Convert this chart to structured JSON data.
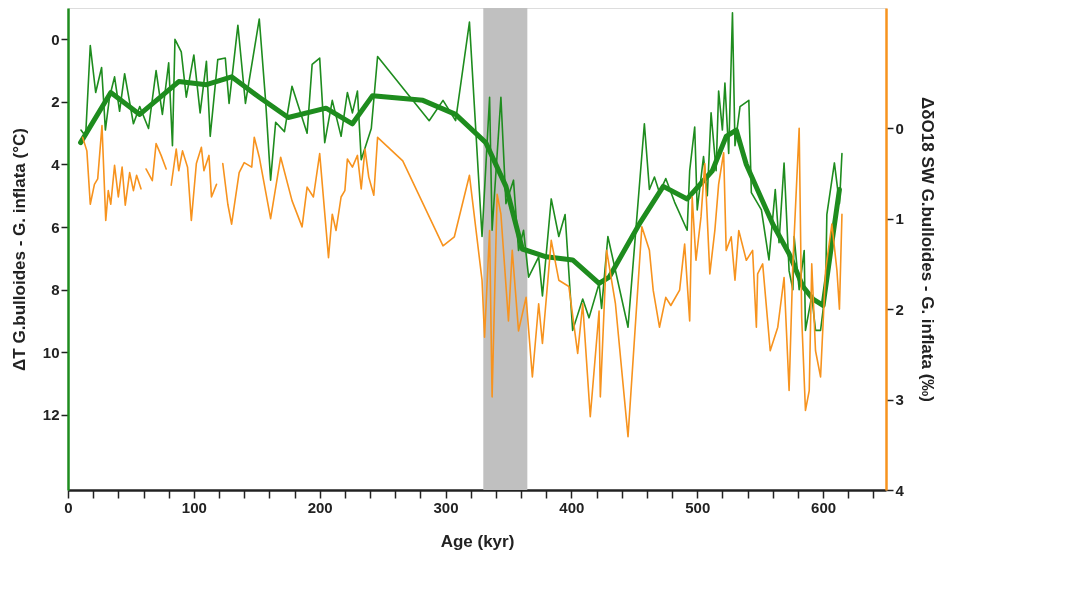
{
  "chart_data": {
    "type": "line",
    "xlabel": "Age (kyr)",
    "ylabel": "ΔT G.bulloides - G. inflata (°C)",
    "y2label": "ΔδO18 SW G.bulloides - G. inflata (‰)",
    "xlim": [
      0,
      650
    ],
    "xticks": [
      0,
      {
        "value": 20,
        "label": null
      },
      {
        "value": 40,
        "label": null
      },
      {
        "value": 60,
        "label": null
      },
      {
        "value": 80,
        "label": null
      },
      100,
      {
        "value": 120,
        "label": null
      },
      {
        "value": 140,
        "label": null
      },
      {
        "value": 160,
        "label": null
      },
      {
        "value": 180,
        "label": null
      },
      200,
      {
        "value": 220,
        "label": null
      },
      {
        "value": 240,
        "label": null
      },
      {
        "value": 260,
        "label": null
      },
      {
        "value": 280,
        "label": null
      },
      300,
      {
        "value": 320,
        "label": null
      },
      {
        "value": 340,
        "label": null
      },
      {
        "value": 360,
        "label": null
      },
      {
        "value": 380,
        "label": null
      },
      400,
      {
        "value": 420,
        "label": null
      },
      {
        "value": 440,
        "label": null
      },
      {
        "value": 460,
        "label": null
      },
      {
        "value": 480,
        "label": null
      },
      500,
      {
        "value": 520,
        "label": null
      },
      {
        "value": 540,
        "label": null
      },
      {
        "value": 560,
        "label": null
      },
      {
        "value": 580,
        "label": null
      },
      600,
      {
        "value": 620,
        "label": null
      },
      {
        "value": 640,
        "label": null
      }
    ],
    "ylim": [
      14.4,
      -1
    ],
    "yticks": [
      0,
      2,
      4,
      6,
      8,
      10,
      12
    ],
    "y2lim": [
      4,
      -1.33
    ],
    "y2ticks": [
      0,
      1,
      2,
      3,
      4
    ],
    "grid": false,
    "bands": [
      {
        "axis": "x",
        "from": 330,
        "to": 365,
        "color": "#c0c0c0"
      }
    ],
    "series": [
      {
        "color": "#1e8c1e",
        "x": [
          10.3,
          14,
          17.7,
          22,
          26.7,
          29.7,
          33,
          37,
          41,
          45,
          52,
          57,
          64,
          70,
          75,
          80,
          83,
          85,
          90,
          94,
          100,
          105,
          110,
          113,
          119,
          125,
          128,
          135,
          141,
          152,
          157,
          161,
          165,
          172,
          178,
          190,
          194,
          200,
          204,
          210,
          217,
          222,
          226,
          230,
          233,
          241,
          246,
          287,
          298,
          308,
          319,
          329,
          335,
          337,
          344,
          348,
          354,
          358,
          362,
          366,
          374,
          377,
          384,
          390,
          395,
          401,
          409,
          414,
          422,
          424,
          429,
          445,
          458,
          462,
          466,
          470,
          475,
          482,
          492,
          494,
          498,
          500,
          505,
          508,
          511,
          515,
          517,
          520,
          522,
          525,
          528,
          530,
          534,
          541,
          543,
          551,
          557,
          562,
          565,
          569,
          573,
          576,
          577,
          581,
          585,
          586,
          591,
          594,
          598,
          602,
          603,
          609,
          613,
          615
        ],
        "values": [
          2.9,
          3.1,
          0.2,
          1.7,
          0.9,
          2.9,
          1.85,
          1.2,
          2.3,
          1.1,
          2.7,
          2.15,
          2.85,
          1.0,
          2.4,
          0.75,
          3.4,
          0.0,
          0.4,
          1.85,
          0.5,
          2.35,
          0.7,
          3.1,
          0.65,
          0.6,
          2.05,
          -0.45,
          2.05,
          -0.65,
          1.95,
          4.5,
          2.65,
          2.95,
          1.5,
          3.0,
          0.8,
          0.6,
          3.3,
          1.95,
          3.1,
          1.7,
          2.35,
          1.65,
          3.85,
          2.85,
          0.55,
          2.6,
          1.95,
          2.6,
          -0.55,
          6.3,
          1.85,
          6.1,
          1.85,
          5.25,
          4.5,
          6.75,
          6.1,
          7.6,
          6.95,
          8.2,
          5.1,
          6.3,
          5.6,
          9.3,
          8.3,
          8.9,
          7.8,
          8.6,
          6.3,
          9.2,
          2.7,
          4.8,
          4.4,
          4.9,
          4.45,
          5.2,
          6.1,
          4.2,
          2.8,
          5.45,
          3.75,
          5.0,
          2.35,
          4.2,
          1.65,
          2.9,
          1.4,
          3.65,
          -0.85,
          3.4,
          2.15,
          1.95,
          4.9,
          5.45,
          7.05,
          4.8,
          6.5,
          3.95,
          7.4,
          8.0,
          6.3,
          8.0,
          6.75,
          9.3,
          8.2,
          9.3,
          9.3,
          8.0,
          5.6,
          3.95,
          5.25,
          3.65
        ]
      },
      {
        "color": "#1e8c1e",
        "x": [
          10,
          34,
          57,
          88,
          110,
          130,
          152,
          175,
          205,
          226,
          242,
          282,
          308,
          332,
          348,
          361,
          380,
          401,
          422,
          430,
          454,
          473,
          492,
          512,
          523,
          531,
          539,
          560,
          573,
          584,
          592,
          600,
          607,
          613
        ],
        "values": [
          3.3,
          1.7,
          2.4,
          1.35,
          1.45,
          1.2,
          1.85,
          2.5,
          2.2,
          2.7,
          1.8,
          1.95,
          2.4,
          3.3,
          4.7,
          6.7,
          6.95,
          7.05,
          7.8,
          7.6,
          5.9,
          4.7,
          5.1,
          4.2,
          3.1,
          2.9,
          4.0,
          5.9,
          6.85,
          7.9,
          8.3,
          8.5,
          6.5,
          4.8
        ]
      },
      {
        "color": "#f7931e",
        "axis": "y2",
        "x": [
          11.6,
          15,
          17.7,
          21,
          23.6,
          27,
          30,
          32,
          34,
          37,
          40,
          43,
          45.5,
          49,
          52,
          54.5,
          58,
          60,
          62,
          67,
          70,
          74,
          78,
          80,
          82,
          86,
          88,
          91,
          95,
          98,
          102,
          106,
          108,
          112,
          114,
          118,
          120,
          123,
          127,
          130,
          132,
          136,
          140,
          146,
          148,
          152,
          161,
          169,
          178,
          186,
          190,
          195,
          200,
          207,
          210,
          213,
          217,
          220,
          222,
          226,
          230,
          233,
          236,
          239,
          243,
          246,
          266,
          298,
          307,
          319,
          329,
          331,
          335,
          337,
          341,
          344,
          350,
          353,
          358,
          364,
          369,
          374,
          377,
          384,
          390,
          398,
          405,
          409,
          415,
          422,
          423,
          428,
          435,
          445,
          456,
          462,
          465,
          470,
          475,
          479,
          486,
          490,
          494,
          496,
          499,
          503,
          506,
          510,
          514,
          517,
          521,
          523,
          527,
          530,
          533,
          539,
          544,
          547,
          548,
          552,
          558,
          564,
          569,
          573,
          576,
          581,
          583,
          586,
          589,
          591,
          594,
          598,
          602,
          607,
          611,
          613,
          615
        ],
        "values": [
          0.1,
          0.25,
          0.84,
          0.62,
          0.56,
          -0.03,
          1.02,
          0.69,
          0.84,
          0.41,
          0.76,
          0.43,
          0.85,
          0.49,
          0.69,
          0.52,
          0.67,
          null,
          0.45,
          0.58,
          0.17,
          0.3,
          0.45,
          null,
          0.63,
          0.23,
          0.47,
          0.25,
          0.43,
          1.02,
          0.39,
          0.21,
          0.47,
          0.3,
          0.76,
          0.62,
          null,
          0.39,
          0.84,
          1.06,
          0.87,
          0.49,
          0.38,
          0.43,
          0.1,
          0.32,
          1.0,
          0.32,
          0.8,
          1.09,
          0.65,
          0.76,
          0.28,
          1.43,
          0.95,
          1.13,
          0.76,
          0.69,
          0.34,
          0.43,
          0.3,
          0.67,
          0.23,
          0.54,
          0.74,
          0.1,
          0.36,
          1.3,
          1.2,
          0.52,
          1.68,
          2.31,
          1.13,
          2.97,
          0.73,
          0.95,
          2.13,
          1.35,
          2.24,
          1.87,
          2.75,
          1.94,
          2.38,
          1.24,
          1.68,
          1.75,
          2.49,
          1.94,
          3.19,
          2.02,
          2.97,
          1.35,
          1.94,
          3.41,
          1.09,
          1.35,
          1.79,
          2.2,
          1.87,
          1.96,
          1.79,
          1.28,
          2.13,
          0.76,
          1.46,
          0.98,
          0.39,
          1.61,
          1.13,
          0.62,
          0.27,
          1.35,
          1.2,
          1.68,
          1.13,
          1.46,
          1.35,
          2.2,
          1.61,
          1.5,
          2.46,
          2.2,
          1.65,
          2.9,
          1.5,
          0.0,
          2.09,
          3.12,
          2.9,
          1.5,
          2.46,
          2.75,
          1.57,
          1.06,
          1.57,
          2.0,
          0.95
        ]
      }
    ]
  }
}
